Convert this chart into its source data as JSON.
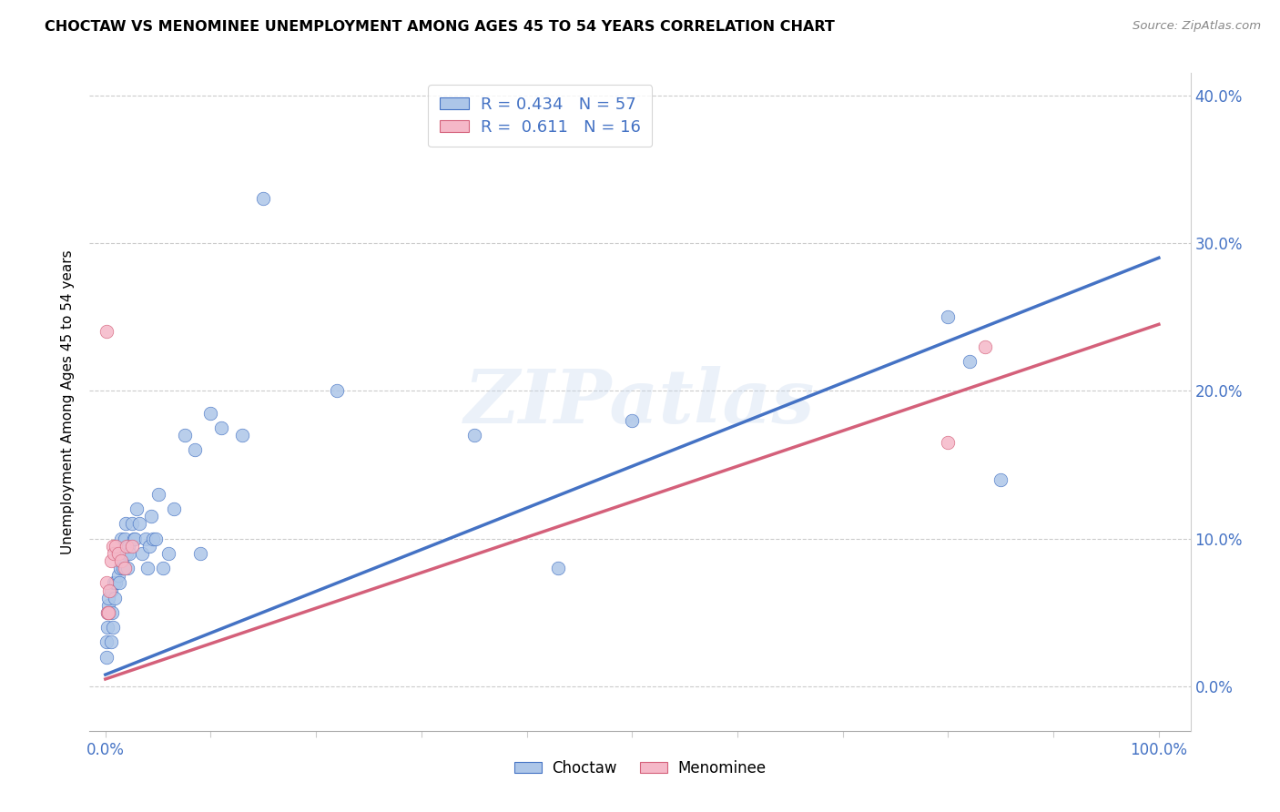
{
  "title": "CHOCTAW VS MENOMINEE UNEMPLOYMENT AMONG AGES 45 TO 54 YEARS CORRELATION CHART",
  "source": "Source: ZipAtlas.com",
  "ylabel": "Unemployment Among Ages 45 to 54 years",
  "choctaw_R": 0.434,
  "choctaw_N": 57,
  "menominee_R": 0.611,
  "menominee_N": 16,
  "choctaw_color": "#adc6e8",
  "menominee_color": "#f5b8c8",
  "choctaw_line_color": "#4472c4",
  "menominee_line_color": "#d4607a",
  "legend_label1": "Choctaw",
  "legend_label2": "Menominee",
  "watermark_text": "ZIPatlas",
  "xlim": [
    -0.015,
    1.03
  ],
  "ylim": [
    -0.03,
    0.415
  ],
  "yticks": [
    0.0,
    0.1,
    0.2,
    0.3,
    0.4
  ],
  "xticks": [
    0.0,
    0.1,
    0.2,
    0.3,
    0.4,
    0.5,
    0.6,
    0.7,
    0.8,
    0.9,
    1.0
  ],
  "choctaw_x": [
    0.001,
    0.001,
    0.002,
    0.002,
    0.003,
    0.003,
    0.004,
    0.005,
    0.005,
    0.006,
    0.007,
    0.008,
    0.009,
    0.01,
    0.011,
    0.012,
    0.013,
    0.014,
    0.015,
    0.016,
    0.017,
    0.018,
    0.019,
    0.02,
    0.021,
    0.022,
    0.023,
    0.025,
    0.027,
    0.028,
    0.03,
    0.032,
    0.035,
    0.038,
    0.04,
    0.042,
    0.043,
    0.045,
    0.048,
    0.05,
    0.055,
    0.06,
    0.065,
    0.075,
    0.085,
    0.09,
    0.1,
    0.11,
    0.13,
    0.15,
    0.22,
    0.35,
    0.43,
    0.5,
    0.8,
    0.82,
    0.85
  ],
  "choctaw_y": [
    0.03,
    0.02,
    0.04,
    0.05,
    0.055,
    0.06,
    0.05,
    0.03,
    0.065,
    0.05,
    0.04,
    0.07,
    0.06,
    0.07,
    0.09,
    0.075,
    0.07,
    0.08,
    0.1,
    0.085,
    0.08,
    0.1,
    0.11,
    0.09,
    0.08,
    0.095,
    0.09,
    0.11,
    0.1,
    0.1,
    0.12,
    0.11,
    0.09,
    0.1,
    0.08,
    0.095,
    0.115,
    0.1,
    0.1,
    0.13,
    0.08,
    0.09,
    0.12,
    0.17,
    0.16,
    0.09,
    0.185,
    0.175,
    0.17,
    0.33,
    0.2,
    0.17,
    0.08,
    0.18,
    0.25,
    0.22,
    0.14
  ],
  "menominee_x": [
    0.001,
    0.001,
    0.002,
    0.003,
    0.004,
    0.005,
    0.007,
    0.008,
    0.01,
    0.012,
    0.015,
    0.018,
    0.02,
    0.025,
    0.8,
    0.835
  ],
  "menominee_y": [
    0.24,
    0.07,
    0.05,
    0.05,
    0.065,
    0.085,
    0.095,
    0.09,
    0.095,
    0.09,
    0.085,
    0.08,
    0.095,
    0.095,
    0.165,
    0.23
  ],
  "choctaw_line": [
    0.0,
    1.0,
    0.008,
    0.29
  ],
  "menominee_line": [
    0.0,
    1.0,
    0.005,
    0.245
  ]
}
